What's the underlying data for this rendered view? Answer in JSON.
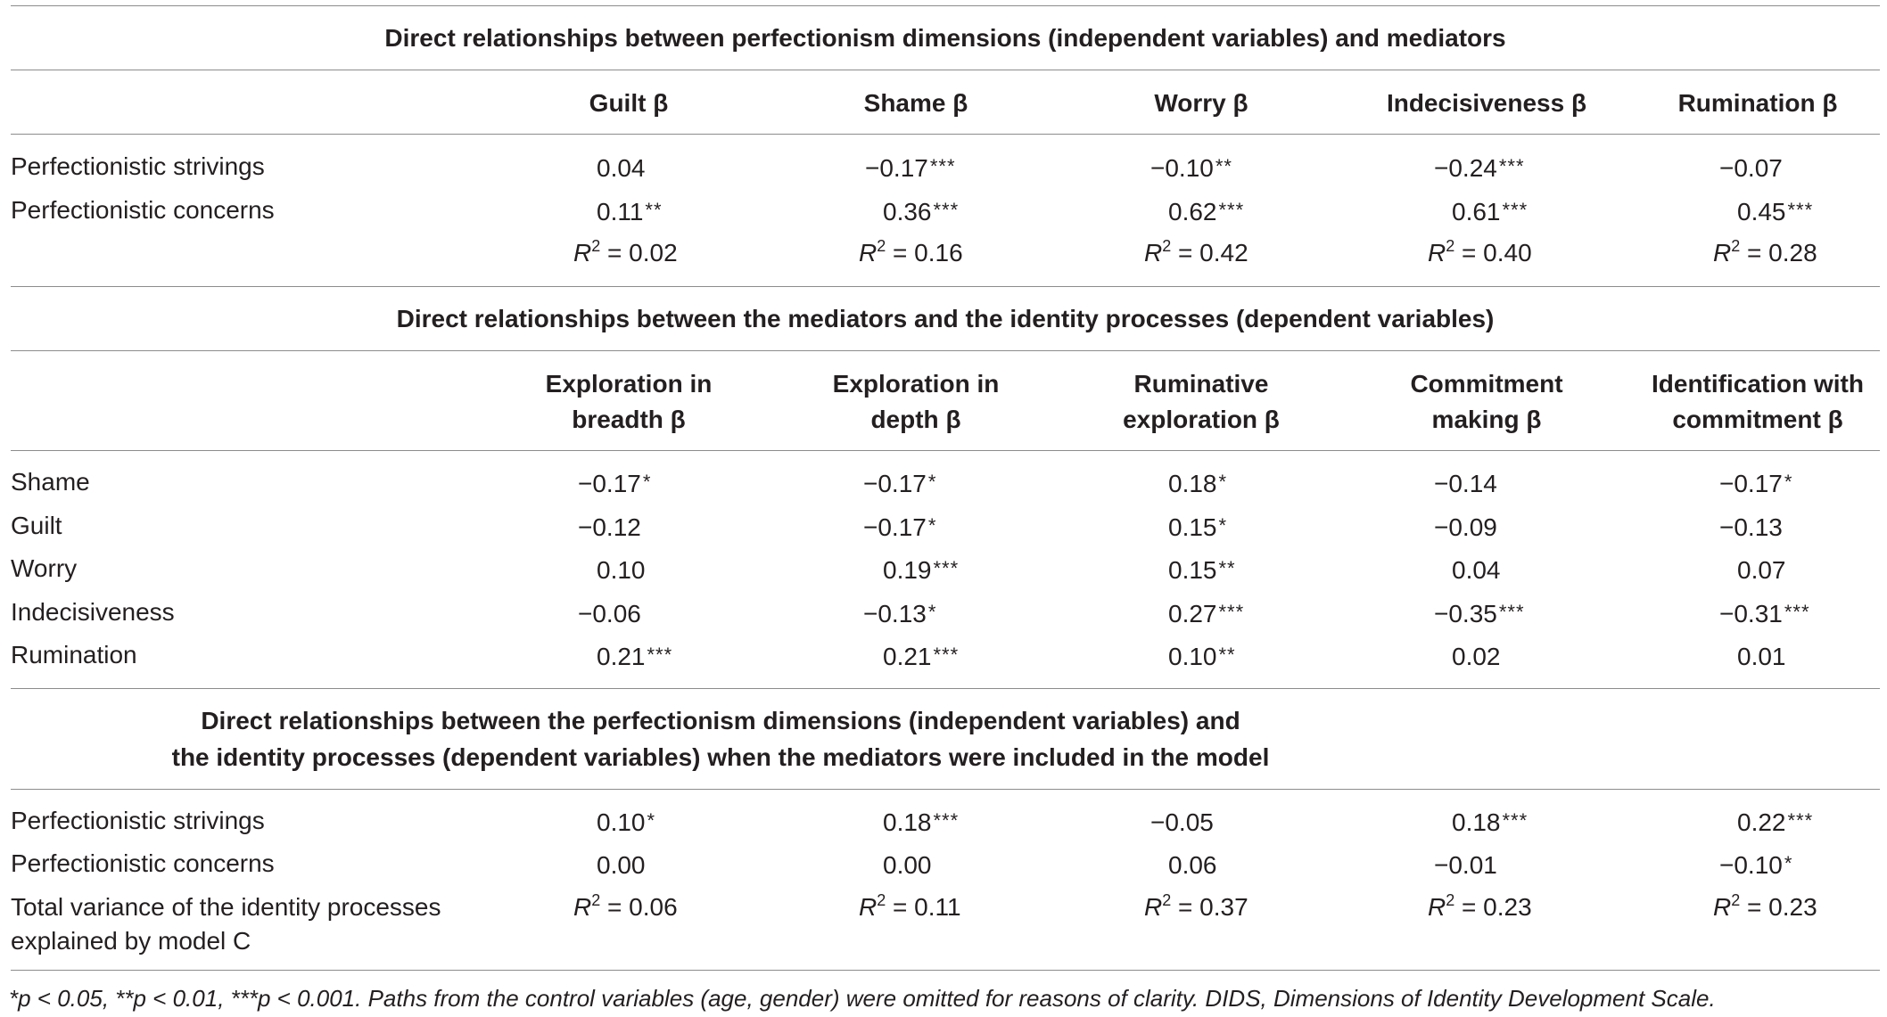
{
  "section1": {
    "title": "Direct relationships between perfectionism dimensions (independent variables) and mediators",
    "headers": [
      "Guilt β",
      "Shame β",
      "Worry β",
      "Indecisiveness β",
      "Rumination β"
    ],
    "rows": [
      {
        "label": "Perfectionistic strivings",
        "cells": [
          [
            "0.04",
            ""
          ],
          [
            "−0.17",
            "***"
          ],
          [
            "−0.10",
            "**"
          ],
          [
            "−0.24",
            "***"
          ],
          [
            "−0.07",
            ""
          ]
        ]
      },
      {
        "label": "Perfectionistic concerns",
        "cells": [
          [
            "0.11",
            "**"
          ],
          [
            "0.36",
            "***"
          ],
          [
            "0.62",
            "***"
          ],
          [
            "0.61",
            "***"
          ],
          [
            "0.45",
            "***"
          ]
        ]
      }
    ],
    "r2": [
      "0.02",
      "0.16",
      "0.42",
      "0.40",
      "0.28"
    ]
  },
  "section2": {
    "title": "Direct relationships between the mediators and the identity processes (dependent variables)",
    "headers": [
      [
        "Exploration in",
        "breadth β"
      ],
      [
        "Exploration in",
        "depth β"
      ],
      [
        "Ruminative",
        "exploration β"
      ],
      [
        "Commitment",
        "making β"
      ],
      [
        "Identification with",
        "commitment β"
      ]
    ],
    "rows": [
      {
        "label": "Shame",
        "cells": [
          [
            "−0.17",
            "*"
          ],
          [
            "−0.17",
            "*"
          ],
          [
            "0.18",
            "*"
          ],
          [
            "−0.14",
            ""
          ],
          [
            "−0.17",
            "*"
          ]
        ]
      },
      {
        "label": "Guilt",
        "cells": [
          [
            "−0.12",
            ""
          ],
          [
            "−0.17",
            "*"
          ],
          [
            "0.15",
            "*"
          ],
          [
            "−0.09",
            ""
          ],
          [
            "−0.13",
            ""
          ]
        ]
      },
      {
        "label": "Worry",
        "cells": [
          [
            "0.10",
            ""
          ],
          [
            "0.19",
            "***"
          ],
          [
            "0.15",
            "**"
          ],
          [
            "0.04",
            ""
          ],
          [
            "0.07",
            ""
          ]
        ]
      },
      {
        "label": "Indecisiveness",
        "cells": [
          [
            "−0.06",
            ""
          ],
          [
            "−0.13",
            "*"
          ],
          [
            "0.27",
            "***"
          ],
          [
            "−0.35",
            "***"
          ],
          [
            "−0.31",
            "***"
          ]
        ]
      },
      {
        "label": "Rumination",
        "cells": [
          [
            "0.21",
            "***"
          ],
          [
            "0.21",
            "***"
          ],
          [
            "0.10",
            "**"
          ],
          [
            "0.02",
            ""
          ],
          [
            "0.01",
            ""
          ]
        ]
      }
    ]
  },
  "section3": {
    "title_lines": [
      "Direct relationships between the perfectionism dimensions (independent variables) and",
      "the identity processes (dependent variables) when the mediators were included in the model"
    ],
    "rows": [
      {
        "label": "Perfectionistic strivings",
        "cells": [
          [
            "0.10",
            "*"
          ],
          [
            "0.18",
            "***"
          ],
          [
            "−0.05",
            ""
          ],
          [
            "0.18",
            "***"
          ],
          [
            "0.22",
            "***"
          ]
        ]
      },
      {
        "label": "Perfectionistic concerns",
        "cells": [
          [
            "0.00",
            ""
          ],
          [
            "0.00",
            ""
          ],
          [
            "0.06",
            ""
          ],
          [
            "−0.01",
            ""
          ],
          [
            "−0.10",
            "*"
          ]
        ]
      }
    ],
    "variance_label": [
      "Total variance of the identity processes",
      "explained by model C"
    ],
    "r2": [
      "0.06",
      "0.11",
      "0.37",
      "0.23",
      "0.23"
    ]
  },
  "r2_symbol": "R",
  "r2_exponent": "2",
  "r2_equals": " = ",
  "footnote": "*p < 0.05, **p < 0.01, ***p < 0.001. Paths from the control variables (age, gender) were omitted for reasons of clarity. DIDS, Dimensions of Identity Development Scale."
}
